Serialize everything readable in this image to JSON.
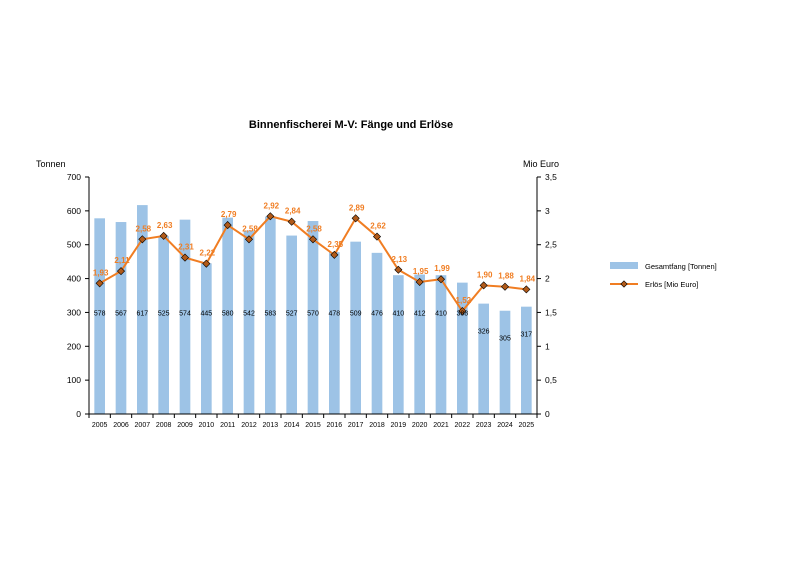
{
  "chart_data": {
    "type": "bar",
    "title": "Binnenfischerei M-V: Fänge und Erlöse",
    "y_left_label": "Tonnen",
    "y_right_label": "Mio Euro",
    "y_left_lim": [
      0,
      700
    ],
    "y_left_ticks": [
      "0",
      "100",
      "200",
      "300",
      "400",
      "500",
      "600",
      "700"
    ],
    "y_right_lim": [
      0,
      3.5
    ],
    "y_right_ticks": [
      "0",
      "0,5",
      "1",
      "1,5",
      "2",
      "2,5",
      "3",
      "3,5"
    ],
    "categories": [
      "2005",
      "2006",
      "2007",
      "2008",
      "2009",
      "2010",
      "2011",
      "2012",
      "2013",
      "2014",
      "2015",
      "2016",
      "2017",
      "2018",
      "2019",
      "2020",
      "2021",
      "2022",
      "2023",
      "2024",
      "2025"
    ],
    "series": [
      {
        "name": "Gesamtfang [Tonnen]",
        "type": "bar",
        "axis": "left",
        "color": "#9dc3e6",
        "values": [
          578,
          567,
          617,
          525,
          574,
          445,
          580,
          542,
          583,
          527,
          570,
          478,
          509,
          476,
          410,
          412,
          410,
          388,
          326,
          305,
          317
        ],
        "labels": [
          "578",
          "567",
          "617",
          "525",
          "574",
          "445",
          "580",
          "542",
          "583",
          "527",
          "570",
          "478",
          "509",
          "476",
          "410",
          "412",
          "410",
          "388",
          "326",
          "305",
          "317"
        ]
      },
      {
        "name": "Erlös [Mio Euro]",
        "type": "line",
        "axis": "right",
        "color": "#f07d22",
        "marker_color": "#b05a1a",
        "values": [
          1.93,
          2.11,
          2.58,
          2.63,
          2.31,
          2.22,
          2.79,
          2.58,
          2.92,
          2.84,
          2.58,
          2.35,
          2.89,
          2.62,
          2.13,
          1.95,
          1.99,
          1.52,
          1.9,
          1.88,
          1.84
        ],
        "labels": [
          "1,93",
          "2,11",
          "2,58",
          "2,63",
          "2,31",
          "2,22",
          "2,79",
          "2,58",
          "2,92",
          "2,84",
          "2,58",
          "2,35",
          "2,89",
          "2,62",
          "2,13",
          "1,95",
          "1,99",
          "1,52",
          "1,90",
          "1,88",
          "1,84"
        ]
      }
    ],
    "legend_position": "right",
    "grid": false
  }
}
